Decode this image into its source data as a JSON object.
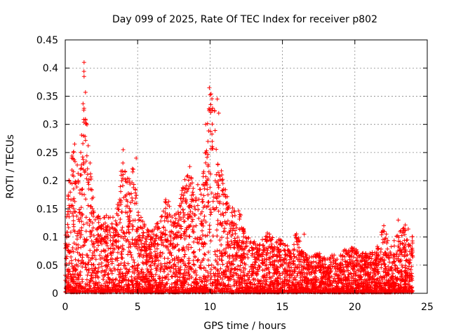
{
  "chart_data": {
    "type": "scatter",
    "title": "Day 099 of 2025, Rate Of TEC Index for receiver p802",
    "xlabel": "GPS time / hours",
    "ylabel": "ROTI / TECUs",
    "xlim": [
      0,
      25
    ],
    "ylim": [
      0,
      0.45
    ],
    "xticks": [
      0,
      5,
      10,
      15,
      20,
      25
    ],
    "yticks": [
      0,
      0.05,
      0.1,
      0.15,
      0.2,
      0.25,
      0.3,
      0.35,
      0.4,
      0.45
    ],
    "grid": true,
    "marker": "plus",
    "color": "#ff0000",
    "envelope": {
      "x": [
        0,
        0.3,
        0.6,
        1.0,
        1.3,
        1.6,
        2.0,
        2.5,
        3.0,
        3.5,
        4.0,
        4.3,
        4.7,
        5.0,
        5.5,
        6.0,
        6.5,
        7.0,
        7.5,
        8.0,
        8.5,
        9.0,
        9.5,
        9.8,
        10.0,
        10.3,
        10.6,
        11.0,
        11.5,
        12.0,
        12.5,
        13.0,
        13.5,
        14.0,
        14.5,
        15.0,
        15.5,
        16.0,
        16.5,
        17.0,
        17.5,
        18.0,
        18.5,
        19.0,
        19.5,
        20.0,
        20.5,
        21.0,
        21.5,
        22.0,
        22.5,
        23.0,
        23.5,
        24.0
      ],
      "y": [
        0.09,
        0.24,
        0.26,
        0.2,
        0.41,
        0.27,
        0.15,
        0.13,
        0.14,
        0.13,
        0.25,
        0.2,
        0.23,
        0.15,
        0.12,
        0.11,
        0.13,
        0.17,
        0.14,
        0.18,
        0.22,
        0.19,
        0.2,
        0.3,
        0.37,
        0.34,
        0.25,
        0.19,
        0.15,
        0.15,
        0.1,
        0.09,
        0.09,
        0.11,
        0.09,
        0.1,
        0.08,
        0.11,
        0.07,
        0.07,
        0.07,
        0.06,
        0.07,
        0.07,
        0.08,
        0.08,
        0.07,
        0.07,
        0.08,
        0.12,
        0.08,
        0.11,
        0.12,
        0.1
      ]
    },
    "highlights": [
      {
        "x": 1.3,
        "y": 0.41
      },
      {
        "x": 1.3,
        "y": 0.385
      },
      {
        "x": 0.45,
        "y": 0.24
      },
      {
        "x": 0.65,
        "y": 0.265
      },
      {
        "x": 4.0,
        "y": 0.255
      },
      {
        "x": 4.9,
        "y": 0.24
      },
      {
        "x": 9.7,
        "y": 0.3
      },
      {
        "x": 9.95,
        "y": 0.365
      },
      {
        "x": 10.05,
        "y": 0.335
      },
      {
        "x": 10.5,
        "y": 0.345
      },
      {
        "x": 10.6,
        "y": 0.32
      },
      {
        "x": 8.6,
        "y": 0.225
      },
      {
        "x": 16.5,
        "y": 0.105
      },
      {
        "x": 22.0,
        "y": 0.12
      },
      {
        "x": 23.0,
        "y": 0.13
      }
    ]
  }
}
